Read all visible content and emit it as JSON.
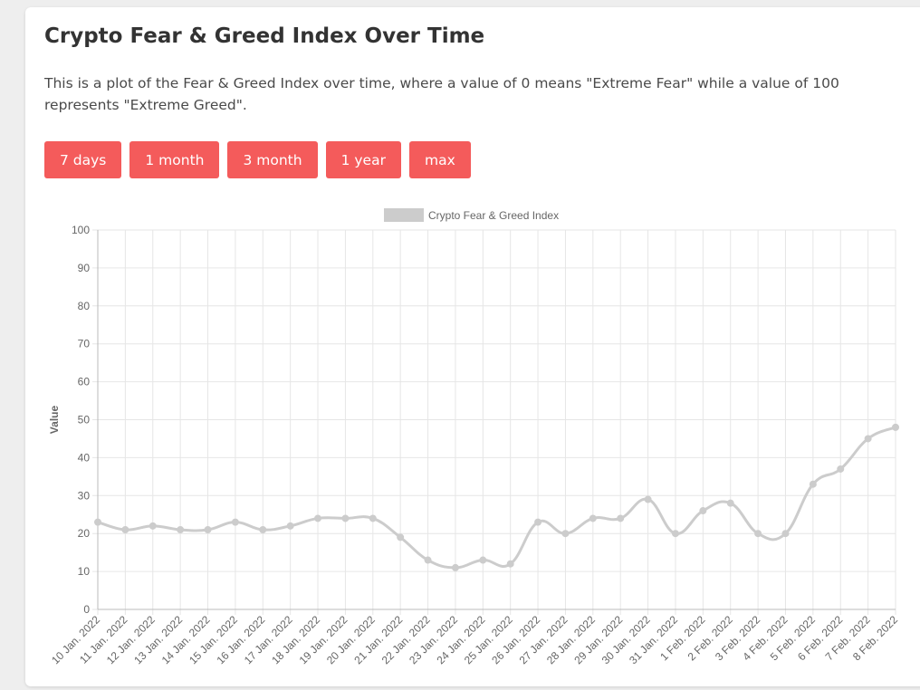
{
  "page": {
    "title": "Crypto Fear & Greed Index Over Time",
    "description": "This is a plot of the Fear & Greed Index over time, where a value of 0 means \"Extreme Fear\" while a value of 100 represents \"Extreme Greed\".",
    "range_buttons": [
      "7 days",
      "1 month",
      "3 month",
      "1 year",
      "max"
    ]
  },
  "colors": {
    "button": "#f45b5b",
    "series": "#cccccc",
    "grid": "#e6e6e6",
    "axis_text": "#666666"
  },
  "chart_data": {
    "type": "line",
    "title": "",
    "xlabel": "",
    "ylabel": "Value",
    "ylim": [
      0,
      100
    ],
    "yticks": [
      0,
      10,
      20,
      30,
      40,
      50,
      60,
      70,
      80,
      90,
      100
    ],
    "grid": true,
    "legend_position": "top-center",
    "categories": [
      "10 Jan. 2022",
      "11 Jan. 2022",
      "12 Jan. 2022",
      "13 Jan. 2022",
      "14 Jan. 2022",
      "15 Jan. 2022",
      "16 Jan. 2022",
      "17 Jan. 2022",
      "18 Jan. 2022",
      "19 Jan. 2022",
      "20 Jan. 2022",
      "21 Jan. 2022",
      "22 Jan. 2022",
      "23 Jan. 2022",
      "24 Jan. 2022",
      "25 Jan. 2022",
      "26 Jan. 2022",
      "27 Jan. 2022",
      "28 Jan. 2022",
      "29 Jan. 2022",
      "30 Jan. 2022",
      "31 Jan. 2022",
      "1 Feb. 2022",
      "2 Feb. 2022",
      "3 Feb. 2022",
      "4 Feb. 2022",
      "5 Feb. 2022",
      "6 Feb. 2022",
      "7 Feb. 2022",
      "8 Feb. 2022"
    ],
    "series": [
      {
        "name": "Crypto Fear & Greed Index",
        "values": [
          23,
          21,
          22,
          21,
          21,
          23,
          21,
          22,
          24,
          24,
          24,
          19,
          13,
          11,
          13,
          12,
          23,
          20,
          24,
          24,
          29,
          20,
          26,
          28,
          20,
          20,
          33,
          37,
          45,
          48
        ]
      }
    ]
  }
}
